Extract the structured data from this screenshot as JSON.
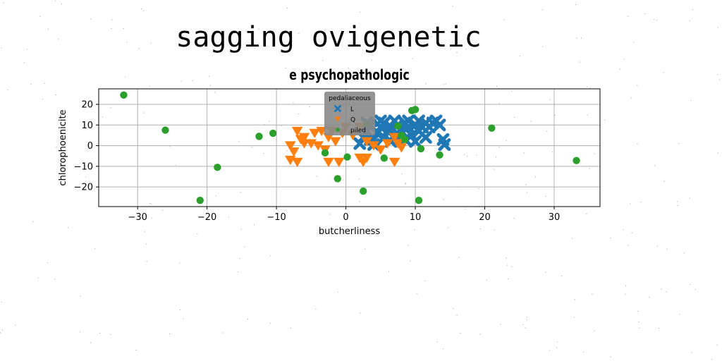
{
  "page": {
    "suptitle": "sagging ovigenetic"
  },
  "chart_data": {
    "type": "scatter",
    "title": "e psychopathologic",
    "xlabel": "butcherliness",
    "ylabel": "chlorophoenicite",
    "xlim": [
      -35.6,
      36.6
    ],
    "ylim": [
      -29.5,
      27.5
    ],
    "x_ticks": [
      -30,
      -20,
      -10,
      0,
      10,
      20,
      30
    ],
    "y_ticks": [
      -20,
      -10,
      0,
      10,
      20
    ],
    "grid": true,
    "legend": {
      "title": "pedaliaceous",
      "placement": "top-center"
    },
    "series": [
      {
        "name": "L",
        "marker": "x",
        "color": "#1f77b4",
        "points": [
          [
            2.5,
            4
          ],
          [
            3,
            7
          ],
          [
            3.5,
            10
          ],
          [
            3.5,
            3
          ],
          [
            4,
            0.5
          ],
          [
            4.5,
            6
          ],
          [
            5,
            12
          ],
          [
            5,
            9
          ],
          [
            5.5,
            4
          ],
          [
            5.5,
            11
          ],
          [
            6,
            7
          ],
          [
            6.5,
            2
          ],
          [
            6.5,
            9
          ],
          [
            7,
            12
          ],
          [
            7,
            5
          ],
          [
            7.5,
            10
          ],
          [
            8,
            7
          ],
          [
            8.5,
            3
          ],
          [
            8.5,
            11
          ],
          [
            9,
            9
          ],
          [
            9,
            12
          ],
          [
            9.5,
            5
          ],
          [
            10,
            2
          ],
          [
            10,
            10
          ],
          [
            10.5,
            7
          ],
          [
            10.5,
            12
          ],
          [
            11,
            9
          ],
          [
            11.5,
            4
          ],
          [
            11.5,
            11
          ],
          [
            12,
            9
          ],
          [
            12.5,
            11
          ],
          [
            13,
            12
          ],
          [
            13.5,
            10
          ],
          [
            14,
            3
          ],
          [
            14.2,
            0.5
          ],
          [
            2,
            1
          ],
          [
            4,
            3
          ],
          [
            3,
            11
          ]
        ]
      },
      {
        "name": "Q",
        "marker": "v",
        "color": "#ff7f0e",
        "points": [
          [
            -8,
            -7
          ],
          [
            -8,
            0
          ],
          [
            -7.5,
            -3
          ],
          [
            -7,
            -8
          ],
          [
            -7,
            7
          ],
          [
            -6.5,
            3
          ],
          [
            -6,
            4
          ],
          [
            -5,
            1
          ],
          [
            -4.5,
            6
          ],
          [
            -4,
            0
          ],
          [
            -3.5,
            7
          ],
          [
            -3,
            -2
          ],
          [
            -2.5,
            4
          ],
          [
            -2.5,
            -8
          ],
          [
            -2,
            7
          ],
          [
            -1.5,
            2
          ],
          [
            -1,
            -8
          ],
          [
            -0.5,
            6
          ],
          [
            0,
            9
          ],
          [
            1,
            5
          ],
          [
            2,
            -6
          ],
          [
            2.5,
            -8
          ],
          [
            3,
            -6
          ],
          [
            3,
            2
          ],
          [
            4,
            0
          ],
          [
            5,
            -2
          ],
          [
            6,
            1
          ],
          [
            7,
            4
          ],
          [
            7,
            -8
          ],
          [
            7.5,
            1
          ],
          [
            8,
            -1
          ],
          [
            2,
            9
          ],
          [
            -6,
            1
          ]
        ]
      },
      {
        "name": "piled",
        "marker": "o",
        "color": "#2ca02c",
        "points": [
          [
            -32,
            24.5
          ],
          [
            -26,
            7.5
          ],
          [
            -21,
            -26.5
          ],
          [
            -18.5,
            -10.5
          ],
          [
            -12.5,
            4.5
          ],
          [
            -10.5,
            6
          ],
          [
            -3,
            -3.5
          ],
          [
            -1.2,
            -16
          ],
          [
            0.2,
            -5.5
          ],
          [
            2.5,
            -22
          ],
          [
            3,
            10.5
          ],
          [
            5.5,
            -6
          ],
          [
            7.5,
            9.5
          ],
          [
            8,
            5
          ],
          [
            8.5,
            3
          ],
          [
            9.5,
            17
          ],
          [
            10,
            17.5
          ],
          [
            10.5,
            -26.5
          ],
          [
            10.8,
            -1.5
          ],
          [
            13.5,
            -4.5
          ],
          [
            21,
            8.5
          ],
          [
            33.2,
            -7.2
          ]
        ]
      }
    ]
  }
}
